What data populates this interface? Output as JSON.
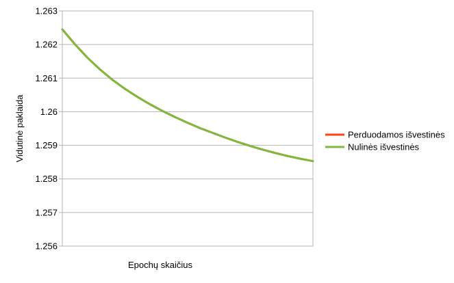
{
  "chart_data": {
    "type": "line",
    "title": "",
    "xlabel": "Epochų skaičius",
    "ylabel": "Vidutinė paklaida",
    "ylim": [
      1.256,
      1.263
    ],
    "yticks": [
      "1.256",
      "1.257",
      "1.258",
      "1.259",
      "1.26",
      "1.261",
      "1.262",
      "1.263"
    ],
    "grid": "horizontal",
    "legend_position": "right",
    "x": [
      1,
      2,
      3,
      4,
      5,
      6,
      7,
      8,
      9,
      10,
      11,
      12,
      13,
      14,
      15,
      16,
      17,
      18,
      19,
      20,
      21
    ],
    "series": [
      {
        "name": "Perduodamos išvestinės",
        "color": "#ff420e",
        "values": [
          1.26245,
          1.26201,
          1.26161,
          1.26126,
          1.26095,
          1.26068,
          1.26044,
          1.26022,
          1.26002,
          1.25984,
          1.25967,
          1.25951,
          1.25937,
          1.25923,
          1.2591,
          1.25898,
          1.25887,
          1.25877,
          1.25868,
          1.2586,
          1.25853
        ]
      },
      {
        "name": "Nulinės išvestinės",
        "color": "#7eb93f",
        "values": [
          1.26245,
          1.26201,
          1.26161,
          1.26126,
          1.26095,
          1.26068,
          1.26044,
          1.26022,
          1.26002,
          1.25984,
          1.25967,
          1.25951,
          1.25937,
          1.25923,
          1.2591,
          1.25898,
          1.25887,
          1.25877,
          1.25868,
          1.2586,
          1.25853
        ]
      }
    ]
  }
}
